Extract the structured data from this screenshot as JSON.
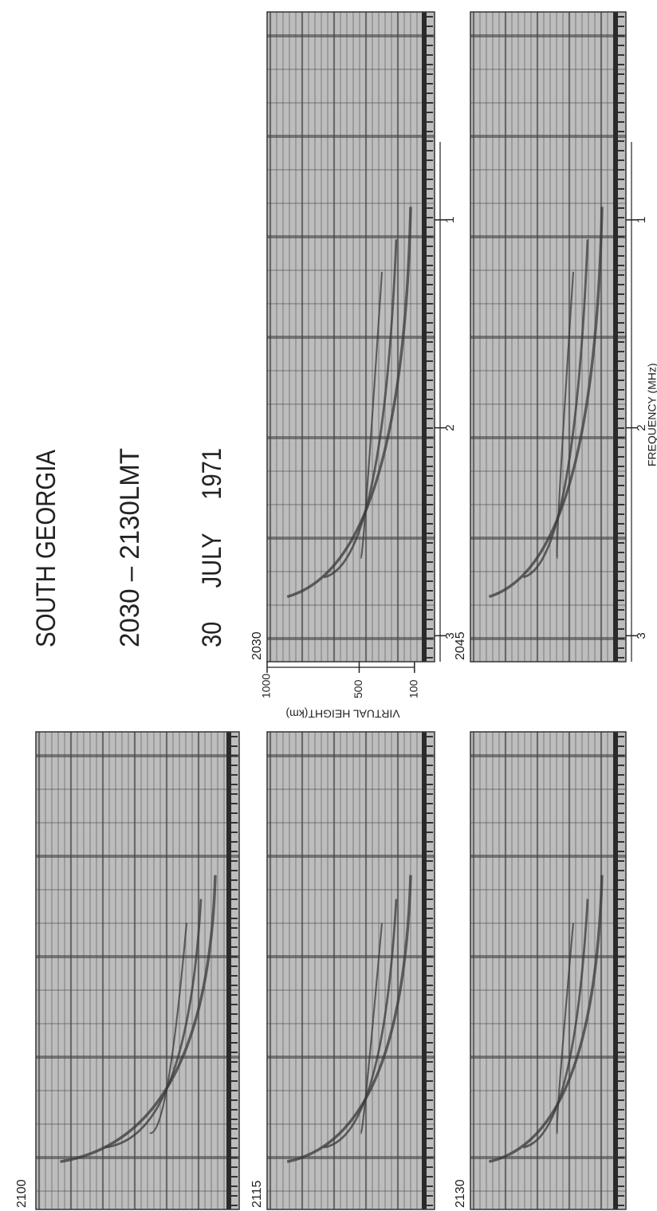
{
  "header": {
    "title": "SOUTH GEORGIA",
    "time_range": "2030 – 2130LMT",
    "date": "30 JULY 1971"
  },
  "axes": {
    "height_label": "VIRTUAL HEIGHT(km)",
    "height_ticks": [
      "1000",
      "500",
      "100"
    ],
    "frequency_label": "FREQUENCY (MHz)"
  },
  "panels": [
    {
      "time": "2030",
      "frequency_ticks": [
        "3",
        "2",
        "1"
      ]
    },
    {
      "time": "2045",
      "frequency_ticks": [
        "3",
        "2",
        "1"
      ]
    },
    {
      "time": "2100"
    },
    {
      "time": "2115"
    },
    {
      "time": "2130"
    }
  ]
}
